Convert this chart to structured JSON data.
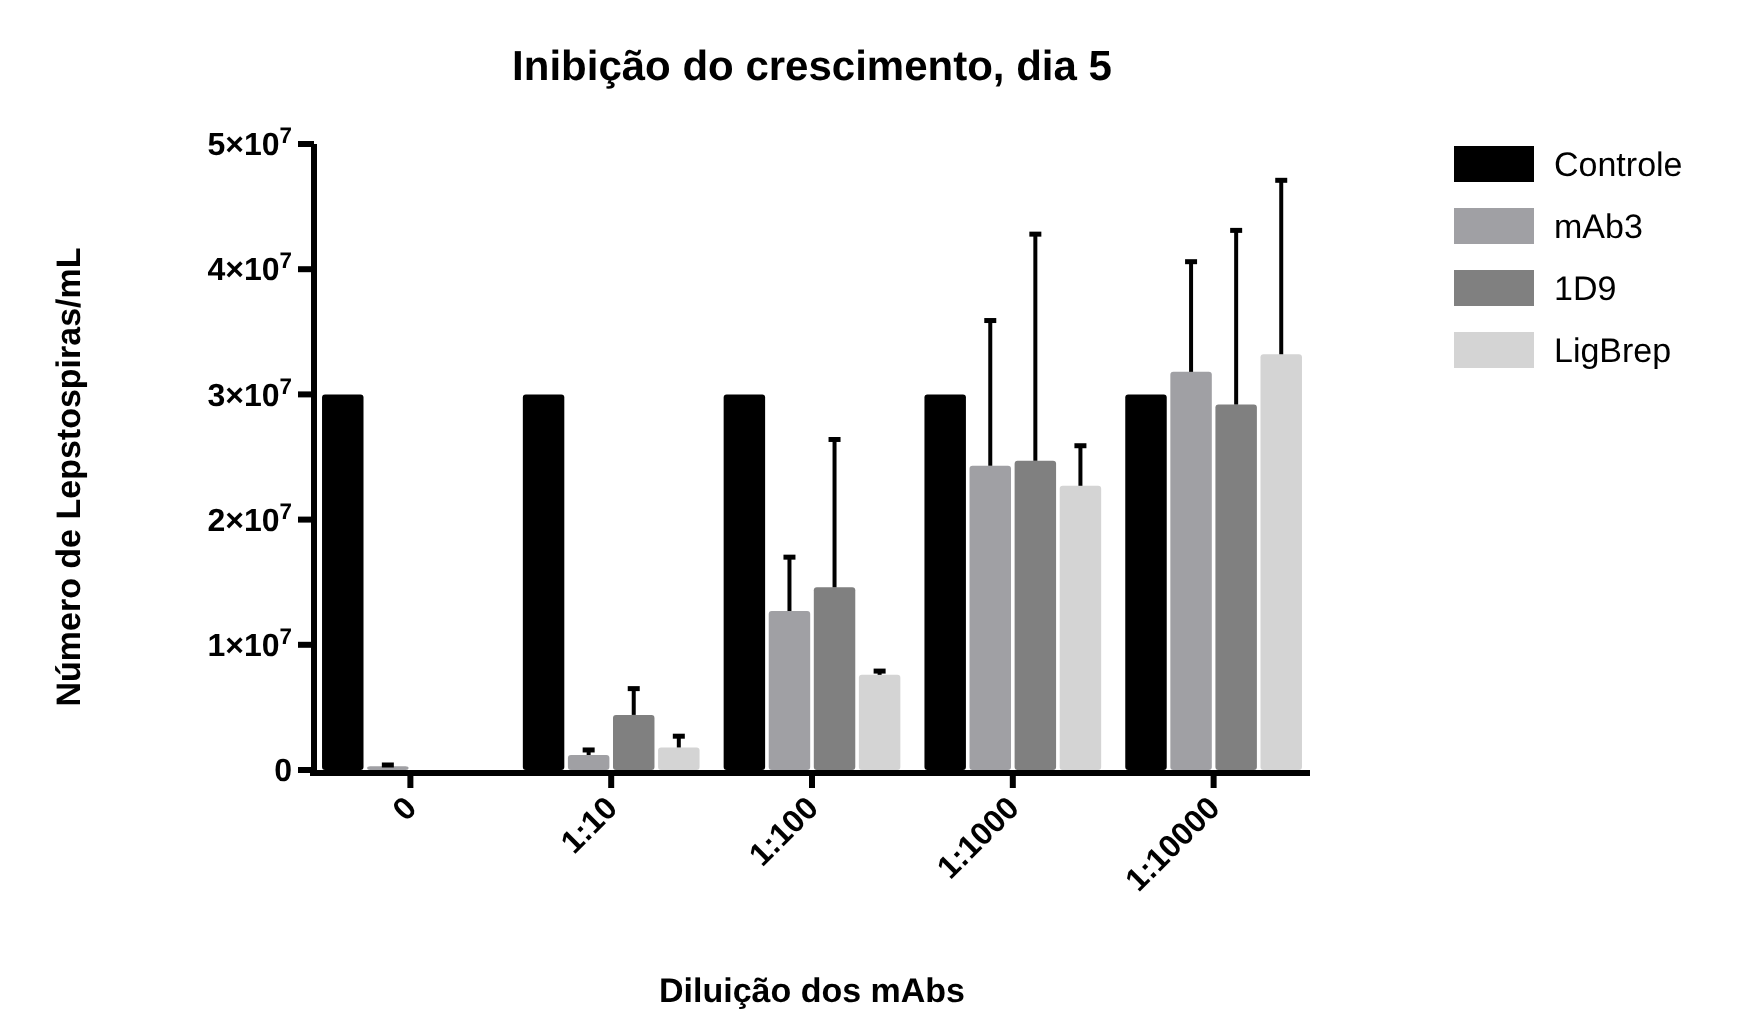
{
  "chart_data": {
    "type": "bar",
    "title": "Inibição do crescimento, dia 5",
    "xlabel": "Diluição dos mAbs",
    "ylabel": "Número de Lepstospiras/mL",
    "categories": [
      "0",
      "1:10",
      "1:100",
      "1:1000",
      "1:10000"
    ],
    "series": [
      {
        "name": "Controle",
        "color": "#000000",
        "values": [
          30000000,
          30000000,
          30000000,
          30000000,
          30000000
        ]
      },
      {
        "name": "mAb3",
        "color": "#a0a0a4",
        "values": [
          300000,
          1200000,
          12700000,
          24300000,
          31800000
        ],
        "errors": [
          100000,
          400000,
          4300000,
          11600000,
          8800000
        ]
      },
      {
        "name": "1D9",
        "color": "#808080",
        "values": [
          null,
          4400000,
          14600000,
          24700000,
          29200000
        ],
        "errors": [
          null,
          2100000,
          11800000,
          18100000,
          13900000
        ]
      },
      {
        "name": "LigBrep",
        "color": "#d4d4d4",
        "values": [
          null,
          1800000,
          7600000,
          22700000,
          33200000
        ],
        "errors": [
          null,
          900000,
          300000,
          3200000,
          13900000
        ]
      }
    ],
    "ylim": [
      0,
      50000000
    ],
    "yticks": [
      0,
      {
        "value": 10000000,
        "label": "1×10$^{7}$"
      },
      {
        "value": 20000000,
        "label": "2×10$^{7}$"
      },
      {
        "value": 30000000,
        "label": "3×10$^{7}$"
      },
      {
        "value": 40000000,
        "label": "4×10$^{7}$"
      },
      {
        "value": 50000000,
        "label": "5×10$^{7}$"
      }
    ],
    "legend": "right",
    "grid": false
  }
}
